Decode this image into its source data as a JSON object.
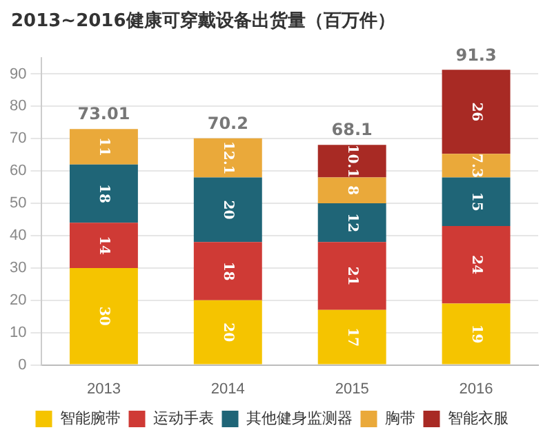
{
  "chart_data": {
    "type": "bar",
    "stacked": true,
    "title": "2013~2016健康可穿戴设备出货量（百万件）",
    "categories": [
      "2013",
      "2014",
      "2015",
      "2016"
    ],
    "series": [
      {
        "name": "智能腕带",
        "color": "#f5c400",
        "values": [
          30,
          20,
          17,
          19
        ]
      },
      {
        "name": "运动手表",
        "color": "#cf3a35",
        "values": [
          14,
          18,
          21,
          24
        ]
      },
      {
        "name": "其他健身监测器",
        "color": "#1f6577",
        "values": [
          18,
          20,
          12,
          15
        ]
      },
      {
        "name": "胸带",
        "color": "#eaa93a",
        "values": [
          11,
          12.1,
          8,
          7.3
        ]
      },
      {
        "name": "智能衣服",
        "color": "#a82a24",
        "values": [
          null,
          null,
          10.1,
          26
        ]
      }
    ],
    "totals": [
      "73.01",
      "70.2",
      "68.1",
      "91.3"
    ],
    "ylim": [
      0,
      95
    ],
    "yticks": [
      0,
      10,
      20,
      30,
      40,
      50,
      60,
      70,
      80,
      90
    ],
    "grid": "y",
    "legend": "bottom",
    "data_labels": true
  }
}
